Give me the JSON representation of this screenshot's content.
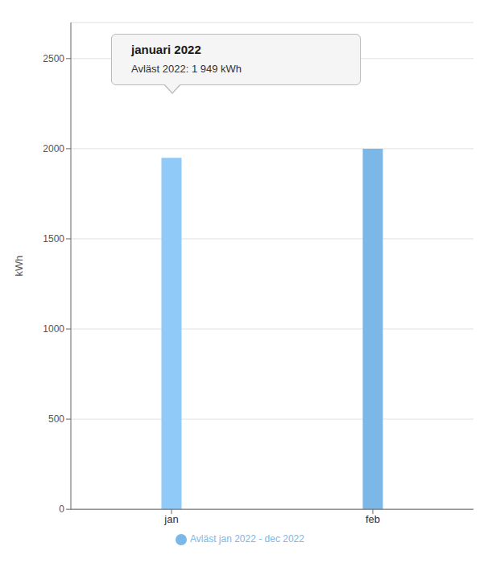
{
  "chart_data": {
    "type": "bar",
    "categories": [
      "jan",
      "feb"
    ],
    "series": [
      {
        "name": "Avläst jan 2022 - dec 2022",
        "color": "#7BB8E8",
        "colors": [
          "#90CAF9",
          "#7BB8E8"
        ],
        "values": [
          1949,
          2000
        ]
      }
    ],
    "ylabel": "kWh",
    "ylim": [
      0,
      2700
    ],
    "yticks": [
      0,
      500,
      1000,
      1500,
      2000,
      2500
    ],
    "grid": true,
    "legend": "bottom",
    "annotations": [
      "januari 2022",
      "Avläst 2022: 1 949 kWh"
    ]
  }
}
